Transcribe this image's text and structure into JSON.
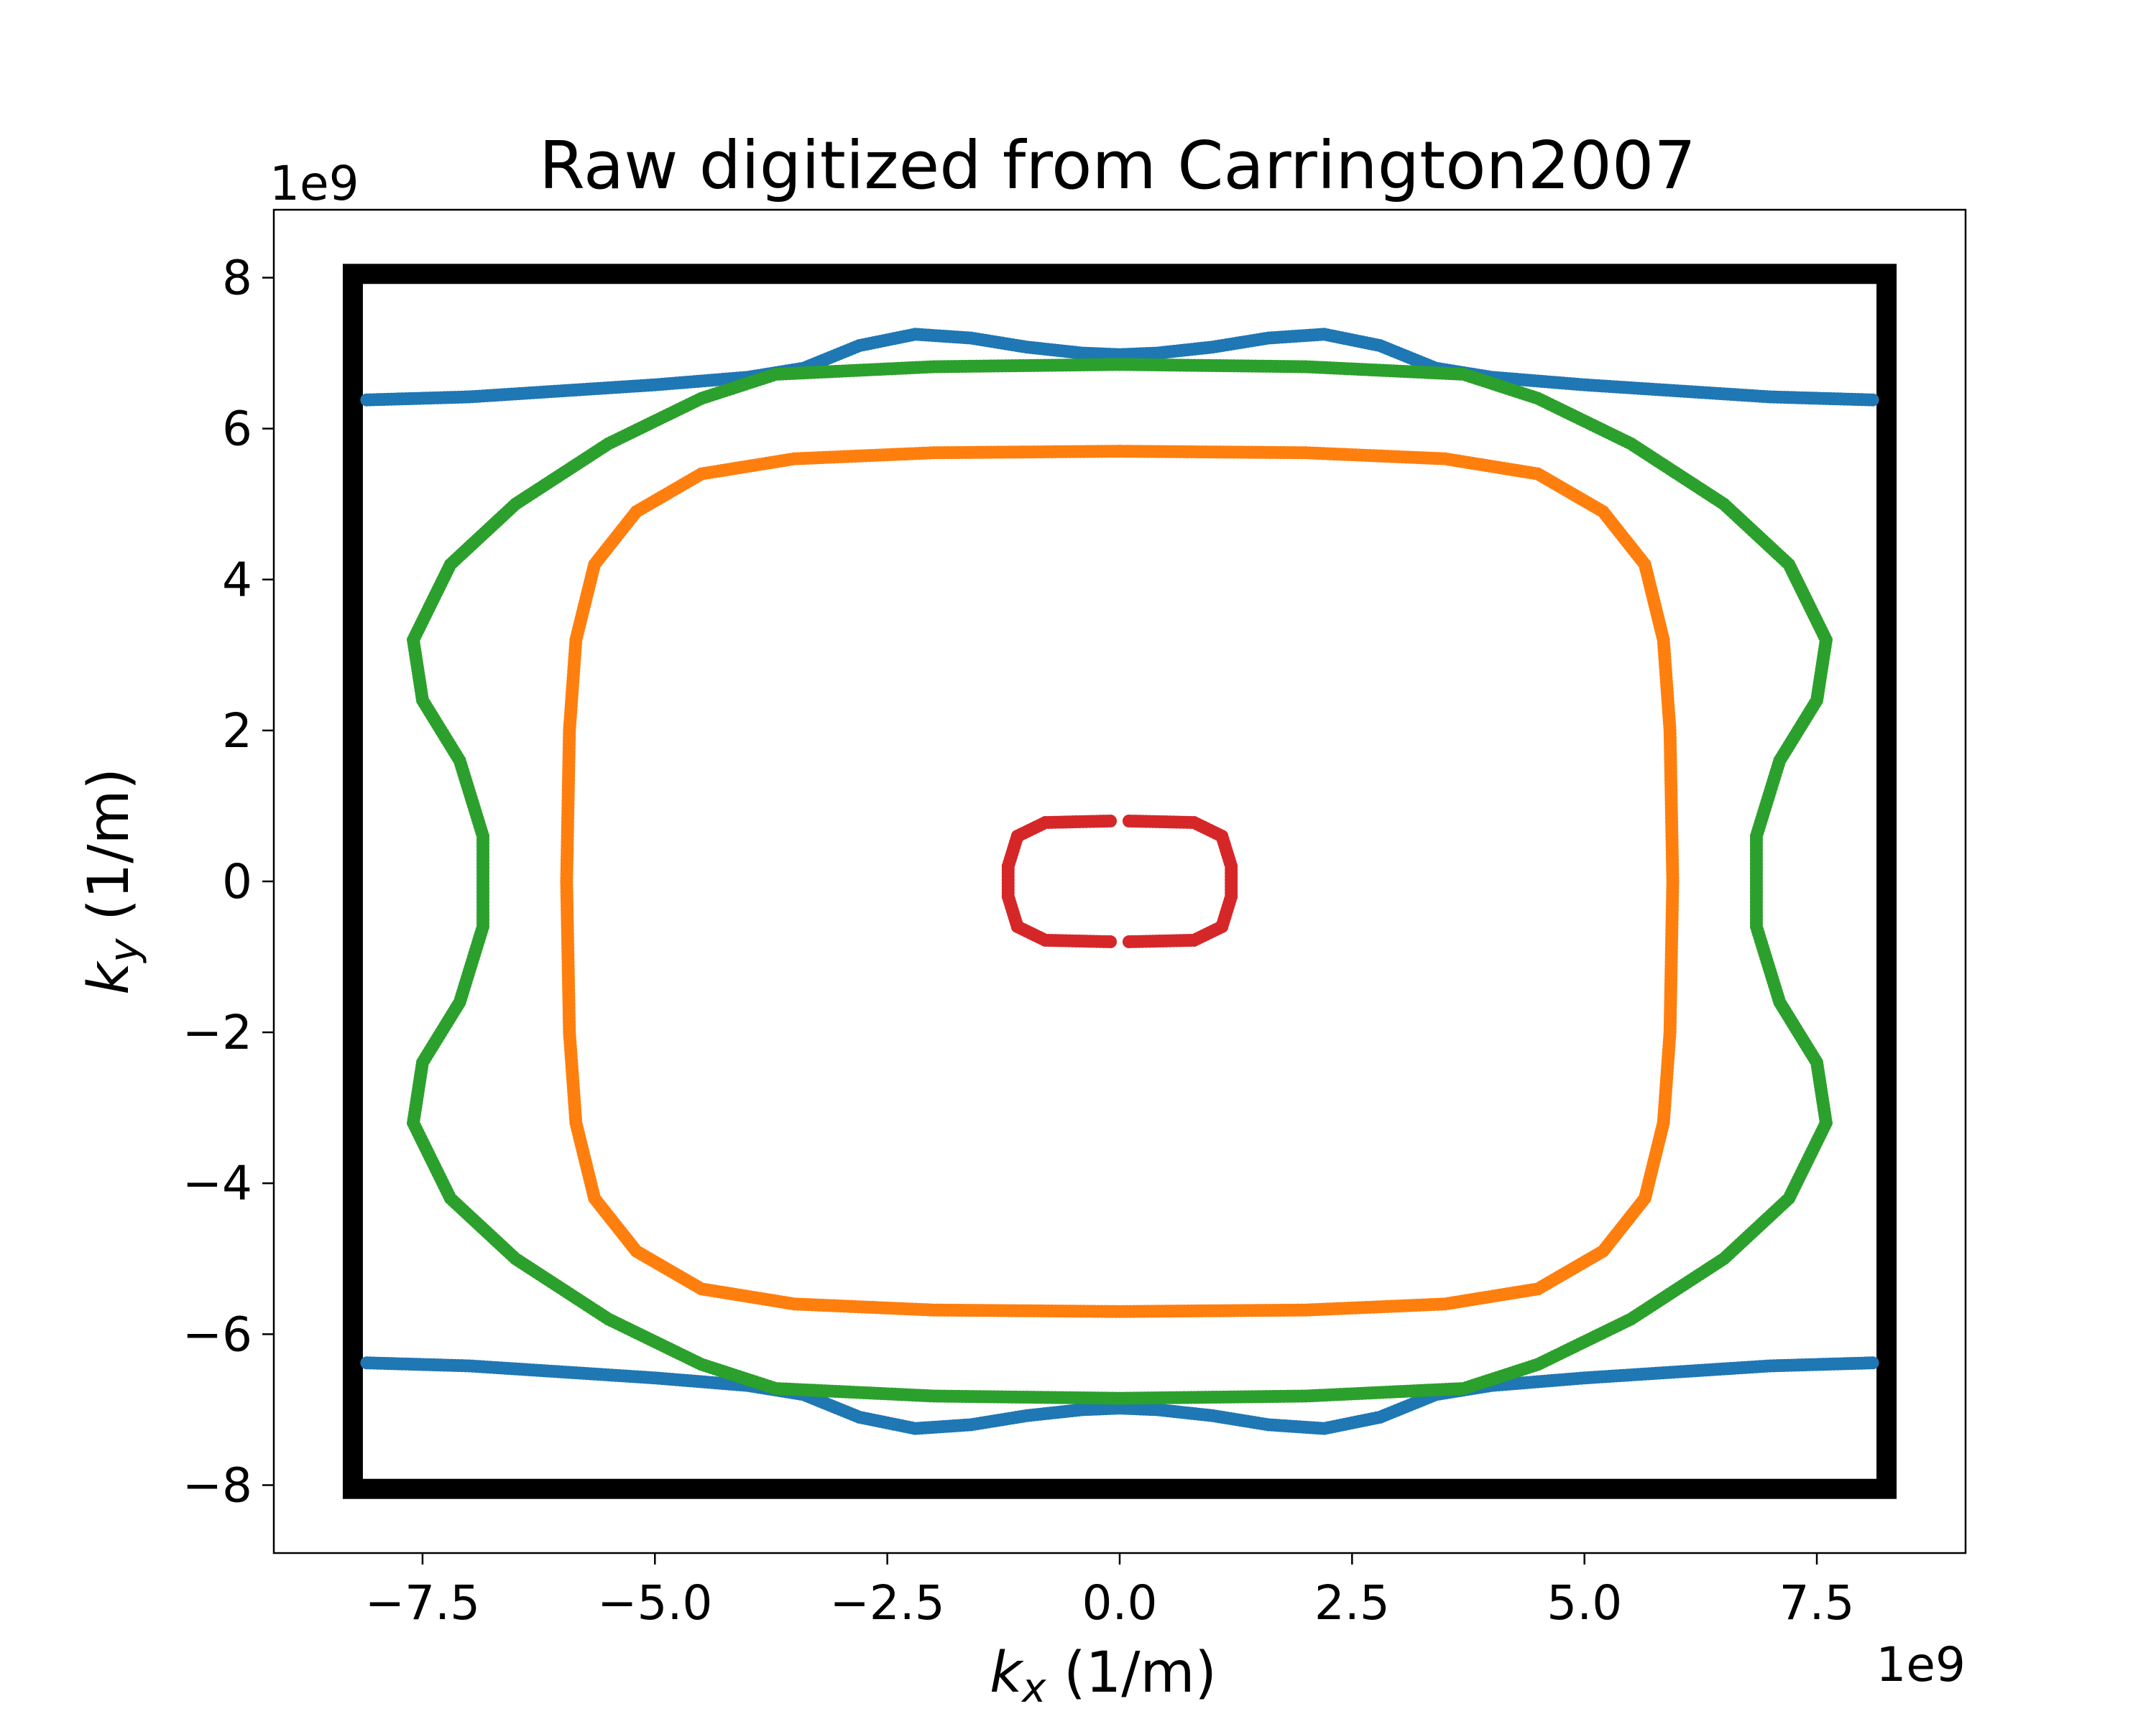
{
  "chart_data": {
    "type": "scatter",
    "title": "Raw digitized from Carrington2007",
    "xlabel": {
      "symbol": "k",
      "subscript": "x",
      "unit": " (1/m)"
    },
    "ylabel": {
      "symbol": "k",
      "subscript": "y",
      "unit": " (1/m)"
    },
    "x_offset": "1e9",
    "y_offset": "1e9",
    "xlim": [
      -9.1,
      9.1
    ],
    "ylim": [
      -8.9,
      8.9
    ],
    "x_ticks": [
      -7.5,
      -5.0,
      -2.5,
      0.0,
      2.5,
      5.0,
      7.5
    ],
    "x_tick_labels": [
      "−7.5",
      "−5.0",
      "−2.5",
      "0.0",
      "2.5",
      "5.0",
      "7.5"
    ],
    "y_ticks": [
      -8,
      -6,
      -4,
      -2,
      0,
      2,
      4,
      6,
      8
    ],
    "y_tick_labels": [
      "−8",
      "−6",
      "−4",
      "−2",
      "0",
      "2",
      "4",
      "6",
      "8"
    ],
    "grid": false,
    "brillouin_zone": {
      "xmin": -8.25,
      "xmax": 8.25,
      "ymin": -8.05,
      "ymax": 8.05,
      "color": "#000000"
    },
    "series": [
      {
        "color": "#1f77b4",
        "curves": [
          [
            [
              -8.1,
              6.38
            ],
            [
              -7.0,
              6.42
            ],
            [
              -6.0,
              6.5
            ],
            [
              -5.0,
              6.58
            ],
            [
              -4.0,
              6.68
            ],
            [
              -3.4,
              6.8
            ],
            [
              -2.8,
              7.1
            ],
            [
              -2.2,
              7.25
            ],
            [
              -1.6,
              7.2
            ],
            [
              -1.0,
              7.08
            ],
            [
              -0.4,
              7.0
            ],
            [
              0.0,
              6.98
            ],
            [
              0.4,
              7.0
            ],
            [
              1.0,
              7.08
            ],
            [
              1.6,
              7.2
            ],
            [
              2.2,
              7.25
            ],
            [
              2.8,
              7.1
            ],
            [
              3.4,
              6.8
            ],
            [
              4.0,
              6.68
            ],
            [
              5.0,
              6.58
            ],
            [
              6.0,
              6.5
            ],
            [
              7.0,
              6.42
            ],
            [
              8.1,
              6.38
            ]
          ],
          [
            [
              -8.1,
              -6.38
            ],
            [
              -7.0,
              -6.42
            ],
            [
              -6.0,
              -6.5
            ],
            [
              -5.0,
              -6.58
            ],
            [
              -4.0,
              -6.68
            ],
            [
              -3.4,
              -6.8
            ],
            [
              -2.8,
              -7.1
            ],
            [
              -2.2,
              -7.25
            ],
            [
              -1.6,
              -7.2
            ],
            [
              -1.0,
              -7.08
            ],
            [
              -0.4,
              -7.0
            ],
            [
              0.0,
              -6.98
            ],
            [
              0.4,
              -7.0
            ],
            [
              1.0,
              -7.08
            ],
            [
              1.6,
              -7.2
            ],
            [
              2.2,
              -7.25
            ],
            [
              2.8,
              -7.1
            ],
            [
              3.4,
              -6.8
            ],
            [
              4.0,
              -6.68
            ],
            [
              5.0,
              -6.58
            ],
            [
              6.0,
              -6.5
            ],
            [
              7.0,
              -6.42
            ],
            [
              8.1,
              -6.38
            ]
          ]
        ]
      },
      {
        "color": "#ff7f0e",
        "curves": [
          [
            [
              0.0,
              5.7
            ],
            [
              2.0,
              5.68
            ],
            [
              3.5,
              5.6
            ],
            [
              4.5,
              5.4
            ],
            [
              5.2,
              4.9
            ],
            [
              5.65,
              4.2
            ],
            [
              5.85,
              3.2
            ],
            [
              5.92,
              2.0
            ],
            [
              5.95,
              0.0
            ],
            [
              5.92,
              -2.0
            ],
            [
              5.85,
              -3.2
            ],
            [
              5.65,
              -4.2
            ],
            [
              5.2,
              -4.9
            ],
            [
              4.5,
              -5.4
            ],
            [
              3.5,
              -5.6
            ],
            [
              2.0,
              -5.68
            ],
            [
              0.0,
              -5.7
            ],
            [
              -2.0,
              -5.68
            ],
            [
              -3.5,
              -5.6
            ],
            [
              -4.5,
              -5.4
            ],
            [
              -5.2,
              -4.9
            ],
            [
              -5.65,
              -4.2
            ],
            [
              -5.85,
              -3.2
            ],
            [
              -5.92,
              -2.0
            ],
            [
              -5.95,
              0.0
            ],
            [
              -5.92,
              2.0
            ],
            [
              -5.85,
              3.2
            ],
            [
              -5.65,
              4.2
            ],
            [
              -5.2,
              4.9
            ],
            [
              -4.5,
              5.4
            ],
            [
              -3.5,
              5.6
            ],
            [
              -2.0,
              5.68
            ],
            [
              0.0,
              5.7
            ]
          ]
        ]
      },
      {
        "color": "#2ca02c",
        "curves": [
          [
            [
              0.0,
              6.85
            ],
            [
              2.0,
              6.82
            ],
            [
              3.7,
              6.72
            ],
            [
              4.5,
              6.4
            ],
            [
              5.5,
              5.8
            ],
            [
              6.5,
              5.0
            ],
            [
              7.2,
              4.2
            ],
            [
              7.6,
              3.2
            ],
            [
              7.5,
              2.4
            ],
            [
              7.1,
              1.6
            ],
            [
              6.85,
              0.6
            ],
            [
              6.85,
              -0.6
            ],
            [
              7.1,
              -1.6
            ],
            [
              7.5,
              -2.4
            ],
            [
              7.6,
              -3.2
            ],
            [
              7.2,
              -4.2
            ],
            [
              6.5,
              -5.0
            ],
            [
              5.5,
              -5.8
            ],
            [
              4.5,
              -6.4
            ],
            [
              3.7,
              -6.72
            ],
            [
              2.0,
              -6.82
            ],
            [
              0.0,
              -6.85
            ],
            [
              -2.0,
              -6.82
            ],
            [
              -3.7,
              -6.72
            ],
            [
              -4.5,
              -6.4
            ],
            [
              -5.5,
              -5.8
            ],
            [
              -6.5,
              -5.0
            ],
            [
              -7.2,
              -4.2
            ],
            [
              -7.6,
              -3.2
            ],
            [
              -7.5,
              -2.4
            ],
            [
              -7.1,
              -1.6
            ],
            [
              -6.85,
              -0.6
            ],
            [
              -6.85,
              0.6
            ],
            [
              -7.1,
              1.6
            ],
            [
              -7.5,
              2.4
            ],
            [
              -7.6,
              3.2
            ],
            [
              -7.2,
              4.2
            ],
            [
              -6.5,
              5.0
            ],
            [
              -5.5,
              5.8
            ],
            [
              -4.5,
              6.4
            ],
            [
              -3.7,
              6.72
            ],
            [
              -2.0,
              6.82
            ],
            [
              0.0,
              6.85
            ]
          ]
        ]
      },
      {
        "color": "#d62728",
        "curves": [
          [
            [
              0.1,
              0.8
            ],
            [
              0.8,
              0.78
            ],
            [
              1.1,
              0.6
            ],
            [
              1.2,
              0.2
            ],
            [
              1.2,
              -0.2
            ],
            [
              1.1,
              -0.6
            ],
            [
              0.8,
              -0.78
            ],
            [
              0.1,
              -0.8
            ]
          ],
          [
            [
              -0.1,
              0.8
            ],
            [
              -0.8,
              0.78
            ],
            [
              -1.1,
              0.6
            ],
            [
              -1.2,
              0.2
            ],
            [
              -1.2,
              -0.2
            ],
            [
              -1.1,
              -0.6
            ],
            [
              -0.8,
              -0.78
            ],
            [
              -0.1,
              -0.8
            ]
          ]
        ]
      }
    ]
  }
}
